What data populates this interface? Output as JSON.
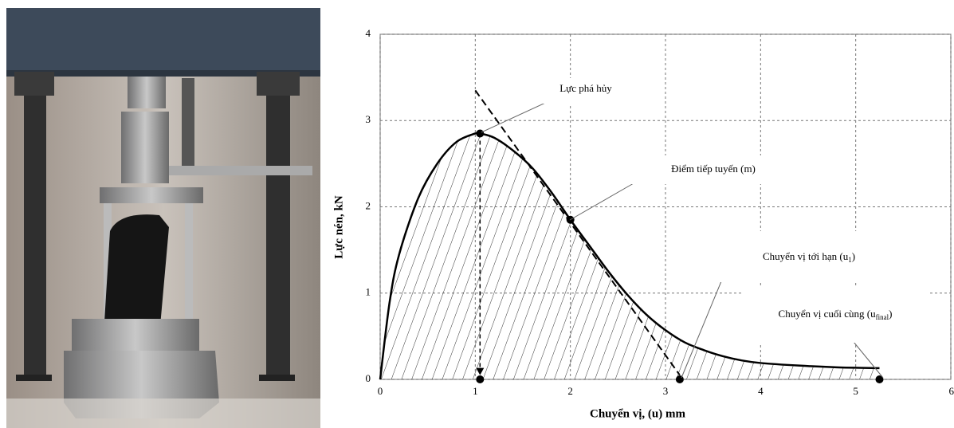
{
  "chart_data": {
    "type": "line",
    "xlabel": "Chuyển vị, (u) mm",
    "ylabel": "Lực nén, kN",
    "xlim": [
      0,
      6
    ],
    "ylim": [
      0,
      4
    ],
    "xticks": [
      0,
      1,
      2,
      3,
      4,
      5,
      6
    ],
    "yticks": [
      0,
      1,
      2,
      3,
      4
    ],
    "grid": true,
    "color": "#000000",
    "curve": {
      "x": [
        0,
        0.1,
        0.2,
        0.4,
        0.6,
        0.8,
        1.0,
        1.05,
        1.2,
        1.4,
        1.6,
        1.8,
        2.0,
        2.2,
        2.4,
        2.6,
        2.8,
        3.0,
        3.2,
        3.4,
        3.6,
        3.8,
        4.0,
        4.4,
        4.8,
        5.25
      ],
      "y": [
        0,
        0.9,
        1.45,
        2.1,
        2.5,
        2.75,
        2.85,
        2.85,
        2.8,
        2.65,
        2.45,
        2.17,
        1.85,
        1.55,
        1.25,
        0.98,
        0.75,
        0.57,
        0.43,
        0.34,
        0.27,
        0.22,
        0.19,
        0.16,
        0.14,
        0.13
      ]
    },
    "tangent_line": {
      "x": [
        1.0,
        3.15
      ],
      "y": [
        3.35,
        0.05
      ]
    },
    "drop_line": {
      "x": [
        1.05,
        1.05
      ],
      "y": [
        2.85,
        0.05
      ]
    },
    "points": {
      "x": [
        1.05,
        2,
        1.05,
        3.15,
        5.25
      ],
      "y": [
        2.85,
        1.85,
        0,
        0,
        0
      ]
    },
    "annotations": [
      {
        "text": "Lực phá hủy"
      },
      {
        "text": "Điểm tiếp tuyến (m)"
      },
      {
        "text": "Chuyển vị tới hạn (u",
        "sub": "1",
        "tail": ")"
      },
      {
        "text": "Chuyển vị cuối cùng (u",
        "sub": "final",
        "tail": ")"
      }
    ]
  }
}
